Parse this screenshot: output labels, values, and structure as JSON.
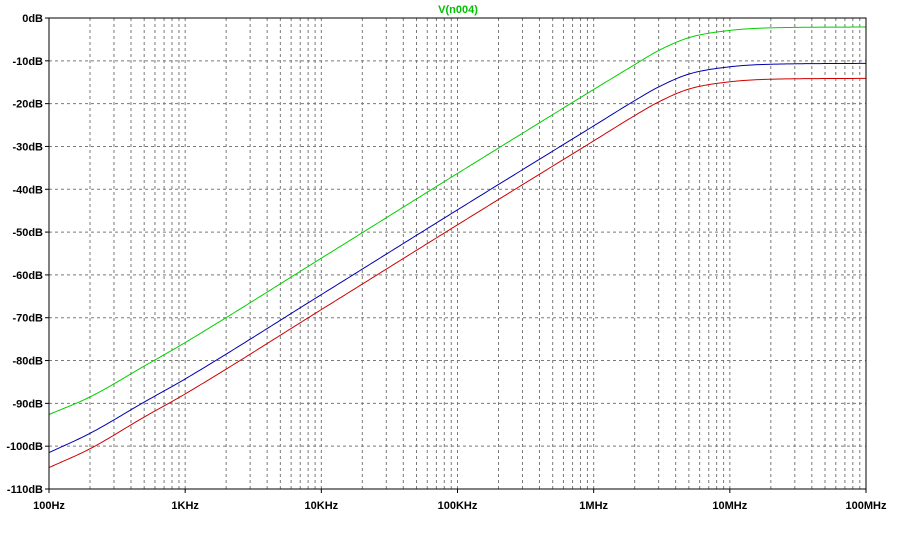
{
  "chart_data": {
    "type": "line",
    "title": "V(n004)",
    "title_color": "#00c000",
    "xscale": "log",
    "xlim": [
      100,
      100000000
    ],
    "ylim": [
      -110,
      0
    ],
    "x_tick_values": [
      100,
      1000,
      10000,
      100000,
      1000000,
      10000000,
      100000000
    ],
    "x_tick_labels": [
      "100Hz",
      "1KHz",
      "10KHz",
      "100KHz",
      "1MHz",
      "10MHz",
      "100MHz"
    ],
    "y_tick_values": [
      0,
      -10,
      -20,
      -30,
      -40,
      -50,
      -60,
      -70,
      -80,
      -90,
      -100,
      -110
    ],
    "y_tick_labels": [
      "0dB",
      "-10dB",
      "-20dB",
      "-30dB",
      "-40dB",
      "-50dB",
      "-60dB",
      "-70dB",
      "-80dB",
      "-90dB",
      "-100dB",
      "-110dB"
    ],
    "grid": true,
    "series": [
      {
        "color": "#00d000",
        "x": [
          100,
          200,
          500,
          1000,
          10000,
          100000,
          1000000,
          2000000,
          3000000,
          5000000,
          10000000,
          20000000,
          100000000
        ],
        "y": [
          -92.6,
          -88.5,
          -81.3,
          -75.8,
          -56.1,
          -36.3,
          -16.7,
          -10.9,
          -7.6,
          -4.6,
          -2.9,
          -2.3,
          -2.1
        ]
      },
      {
        "color": "#0000b0",
        "x": [
          100,
          200,
          500,
          1000,
          10000,
          100000,
          1000000,
          2000000,
          3000000,
          5000000,
          10000000,
          20000000,
          100000000
        ],
        "y": [
          -101.5,
          -97.0,
          -89.7,
          -84.3,
          -64.6,
          -44.8,
          -25.2,
          -19.3,
          -16.1,
          -13.1,
          -11.4,
          -10.8,
          -10.6
        ]
      },
      {
        "color": "#d00000",
        "x": [
          100,
          200,
          500,
          1000,
          10000,
          100000,
          1000000,
          2000000,
          3000000,
          5000000,
          10000000,
          20000000,
          100000000
        ],
        "y": [
          -105.0,
          -100.6,
          -93.2,
          -87.8,
          -68.1,
          -48.3,
          -28.7,
          -22.8,
          -19.6,
          -16.6,
          -14.9,
          -14.3,
          -14.1
        ]
      }
    ]
  }
}
